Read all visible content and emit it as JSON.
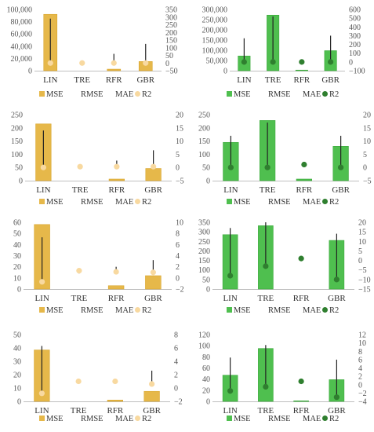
{
  "chart_data": [
    {
      "type": "bar",
      "theme": "gold",
      "categories": [
        "LIN",
        "TRE",
        "RFR",
        "GBR"
      ],
      "ylim_left": [
        0,
        100000
      ],
      "left_ticks": [
        "0",
        "20,000",
        "40,000",
        "60,000",
        "80,000",
        "100,000"
      ],
      "ylim_right": [
        -50,
        350
      ],
      "right_ticks": [
        "−50",
        "0",
        "50",
        "100",
        "150",
        "200",
        "250",
        "300",
        "350"
      ],
      "series": [
        {
          "name": "MSE",
          "axis": "left",
          "kind": "bar",
          "values": [
            92000,
            0,
            2500,
            15000
          ]
        },
        {
          "name": "RMSE",
          "axis": "left",
          "kind": "none",
          "values": [
            null,
            null,
            null,
            null
          ]
        },
        {
          "name": "MAE",
          "axis": "right",
          "kind": "errorbar",
          "low": [
            0,
            0,
            0,
            0
          ],
          "high": [
            290,
            0,
            60,
            125
          ]
        },
        {
          "name": "R2",
          "axis": "right",
          "kind": "marker",
          "values": [
            0,
            0,
            0,
            0
          ]
        }
      ],
      "legend": [
        "MSE",
        "RMSE",
        "MAE",
        "R2"
      ],
      "legend_position": "bottom"
    },
    {
      "type": "bar",
      "theme": "green",
      "categories": [
        "LIN",
        "TRE",
        "RFR",
        "GBR"
      ],
      "ylim_left": [
        0,
        300000
      ],
      "left_ticks": [
        "0",
        "50,000",
        "100,000",
        "150,000",
        "200,000",
        "250,000",
        "300,000"
      ],
      "ylim_right": [
        -100,
        600
      ],
      "right_ticks": [
        "−100",
        "0",
        "100",
        "200",
        "300",
        "400",
        "500",
        "600"
      ],
      "series": [
        {
          "name": "MSE",
          "axis": "left",
          "kind": "bar",
          "values": [
            72000,
            272000,
            3000,
            98000
          ]
        },
        {
          "name": "RMSE",
          "axis": "left",
          "kind": "none",
          "values": [
            null,
            null,
            null,
            null
          ]
        },
        {
          "name": "MAE",
          "axis": "right",
          "kind": "errorbar",
          "low": [
            0,
            0,
            0,
            0
          ],
          "high": [
            270,
            520,
            0,
            300
          ]
        },
        {
          "name": "R2",
          "axis": "right",
          "kind": "marker",
          "values": [
            0,
            0,
            0,
            0
          ]
        }
      ],
      "legend": [
        "MSE",
        "RMSE",
        "MAE",
        "R2"
      ],
      "legend_position": "bottom"
    },
    {
      "type": "bar",
      "theme": "gold",
      "categories": [
        "LIN",
        "TRE",
        "RFR",
        "GBR"
      ],
      "ylim_left": [
        0,
        250
      ],
      "left_ticks": [
        "0",
        "50",
        "100",
        "150",
        "200",
        "250"
      ],
      "ylim_right": [
        -5,
        20
      ],
      "right_ticks": [
        "−5",
        "0",
        "5",
        "10",
        "15",
        "20"
      ],
      "series": [
        {
          "name": "MSE",
          "axis": "left",
          "kind": "bar",
          "values": [
            215,
            0,
            6,
            46
          ]
        },
        {
          "name": "RMSE",
          "axis": "left",
          "kind": "none",
          "values": [
            null,
            null,
            null,
            null
          ]
        },
        {
          "name": "MAE",
          "axis": "right",
          "kind": "errorbar",
          "low": [
            0,
            0.3,
            0.3,
            0.3
          ],
          "high": [
            14,
            0.3,
            2.6,
            6.5
          ]
        },
        {
          "name": "R2",
          "axis": "right",
          "kind": "marker",
          "values": [
            0,
            0.3,
            0.3,
            0.3
          ]
        }
      ],
      "legend": [
        "MSE",
        "RMSE",
        "MAE",
        "R2"
      ],
      "legend_position": "bottom"
    },
    {
      "type": "bar",
      "theme": "green",
      "categories": [
        "LIN",
        "TRE",
        "RFR",
        "GBR"
      ],
      "ylim_left": [
        0,
        250
      ],
      "left_ticks": [
        "0",
        "50",
        "100",
        "150",
        "200",
        "250"
      ],
      "ylim_right": [
        -5,
        20
      ],
      "right_ticks": [
        "−5",
        "0",
        "5",
        "10",
        "15",
        "20"
      ],
      "series": [
        {
          "name": "MSE",
          "axis": "left",
          "kind": "bar",
          "values": [
            145,
            228,
            6,
            130
          ]
        },
        {
          "name": "RMSE",
          "axis": "left",
          "kind": "none",
          "values": [
            null,
            null,
            null,
            null
          ]
        },
        {
          "name": "MAE",
          "axis": "right",
          "kind": "errorbar",
          "low": [
            0,
            0,
            1.1,
            0
          ],
          "high": [
            12,
            17,
            2,
            12
          ]
        },
        {
          "name": "R2",
          "axis": "right",
          "kind": "marker",
          "values": [
            0,
            0,
            1.1,
            0
          ]
        }
      ],
      "legend": [
        "MSE",
        "RMSE",
        "MAE",
        "R2"
      ],
      "legend_position": "bottom"
    },
    {
      "type": "bar",
      "theme": "gold",
      "categories": [
        "LIN",
        "TRE",
        "RFR",
        "GBR"
      ],
      "ylim_left": [
        0,
        60
      ],
      "left_ticks": [
        "0",
        "10",
        "20",
        "30",
        "40",
        "50",
        "60"
      ],
      "ylim_right": [
        -2,
        10
      ],
      "right_ticks": [
        "−2",
        "0",
        "2",
        "4",
        "6",
        "8",
        "10"
      ],
      "series": [
        {
          "name": "MSE",
          "axis": "left",
          "kind": "bar",
          "values": [
            58,
            0,
            3,
            12
          ]
        },
        {
          "name": "RMSE",
          "axis": "left",
          "kind": "none",
          "values": [
            null,
            null,
            null,
            null
          ]
        },
        {
          "name": "MAE",
          "axis": "right",
          "kind": "errorbar",
          "low": [
            -0.7,
            0.8,
            1.1,
            1
          ],
          "high": [
            7.3,
            1.3,
            2,
            3.2
          ]
        },
        {
          "name": "R2",
          "axis": "right",
          "kind": "marker",
          "values": [
            -0.7,
            1.3,
            1.1,
            1
          ]
        }
      ],
      "legend": [
        "MSE",
        "RMSE",
        "MAE",
        "R2"
      ],
      "legend_position": "bottom"
    },
    {
      "type": "bar",
      "theme": "green",
      "categories": [
        "LIN",
        "TRE",
        "RFR",
        "GBR"
      ],
      "ylim_left": [
        0,
        350
      ],
      "left_ticks": [
        "0",
        "50",
        "100",
        "150",
        "200",
        "250",
        "300",
        "350"
      ],
      "ylim_right": [
        -15,
        20
      ],
      "right_ticks": [
        "−15",
        "−10",
        "−5",
        "0",
        "5",
        "10",
        "15",
        "20"
      ],
      "series": [
        {
          "name": "MSE",
          "axis": "left",
          "kind": "bar",
          "values": [
            285,
            332,
            0,
            255
          ]
        },
        {
          "name": "RMSE",
          "axis": "left",
          "kind": "none",
          "values": [
            null,
            null,
            null,
            null
          ]
        },
        {
          "name": "MAE",
          "axis": "right",
          "kind": "errorbar",
          "low": [
            -8,
            -3,
            1,
            -10
          ],
          "high": [
            17,
            20,
            1,
            14
          ]
        },
        {
          "name": "R2",
          "axis": "right",
          "kind": "marker",
          "values": [
            -8,
            -3,
            1,
            -10
          ]
        }
      ],
      "legend": [
        "MSE",
        "RMSE",
        "MAE",
        "R2"
      ],
      "legend_position": "bottom"
    },
    {
      "type": "bar",
      "theme": "gold",
      "categories": [
        "LIN",
        "TRE",
        "RFR",
        "GBR"
      ],
      "ylim_left": [
        0,
        50
      ],
      "left_ticks": [
        "0",
        "10",
        "20",
        "30",
        "40",
        "50"
      ],
      "ylim_right": [
        -2,
        8
      ],
      "right_ticks": [
        "−2",
        "0",
        "2",
        "4",
        "6",
        "8"
      ],
      "series": [
        {
          "name": "MSE",
          "axis": "left",
          "kind": "bar",
          "values": [
            38.5,
            0,
            1,
            7.5
          ]
        },
        {
          "name": "RMSE",
          "axis": "left",
          "kind": "none",
          "values": [
            null,
            null,
            null,
            null
          ]
        },
        {
          "name": "MAE",
          "axis": "right",
          "kind": "errorbar",
          "low": [
            -0.8,
            1,
            1,
            0.6
          ],
          "high": [
            6.3,
            1,
            1,
            2.6
          ]
        },
        {
          "name": "R2",
          "axis": "right",
          "kind": "marker",
          "values": [
            -0.8,
            1,
            1,
            0.6
          ]
        }
      ],
      "legend": [
        "MSE",
        "RMSE",
        "MAE",
        "R2"
      ],
      "legend_position": "bottom"
    },
    {
      "type": "bar",
      "theme": "green",
      "categories": [
        "LIN",
        "TRE",
        "RFR",
        "GBR"
      ],
      "ylim_left": [
        0,
        120
      ],
      "left_ticks": [
        "0",
        "20",
        "40",
        "60",
        "80",
        "100",
        "120"
      ],
      "ylim_right": [
        -4,
        12
      ],
      "right_ticks": [
        "−4",
        "−2",
        "0",
        "2",
        "4",
        "6",
        "8",
        "10",
        "12"
      ],
      "series": [
        {
          "name": "MSE",
          "axis": "left",
          "kind": "bar",
          "values": [
            47,
            95,
            1,
            39
          ]
        },
        {
          "name": "RMSE",
          "axis": "left",
          "kind": "none",
          "values": [
            null,
            null,
            null,
            null
          ]
        },
        {
          "name": "MAE",
          "axis": "right",
          "kind": "errorbar",
          "low": [
            -1.5,
            -0.5,
            0.8,
            -3
          ],
          "high": [
            6.5,
            9.5,
            0.8,
            6
          ]
        },
        {
          "name": "R2",
          "axis": "right",
          "kind": "marker",
          "values": [
            -1.5,
            -0.5,
            0.8,
            -3
          ]
        }
      ],
      "legend": [
        "MSE",
        "RMSE",
        "MAE",
        "R2"
      ],
      "legend_position": "bottom"
    }
  ],
  "colors": {
    "gold_bar": "#e6b84a",
    "gold_bar_edge": "#d9a62e",
    "gold_marker": "#f8d9a0",
    "green_bar": "#4fbf4f",
    "green_bar_edge": "#3aa83a",
    "green_marker": "#2f7f2f",
    "errorbar": "#222222",
    "axis": "#bfbfbf",
    "text": "#555555"
  }
}
